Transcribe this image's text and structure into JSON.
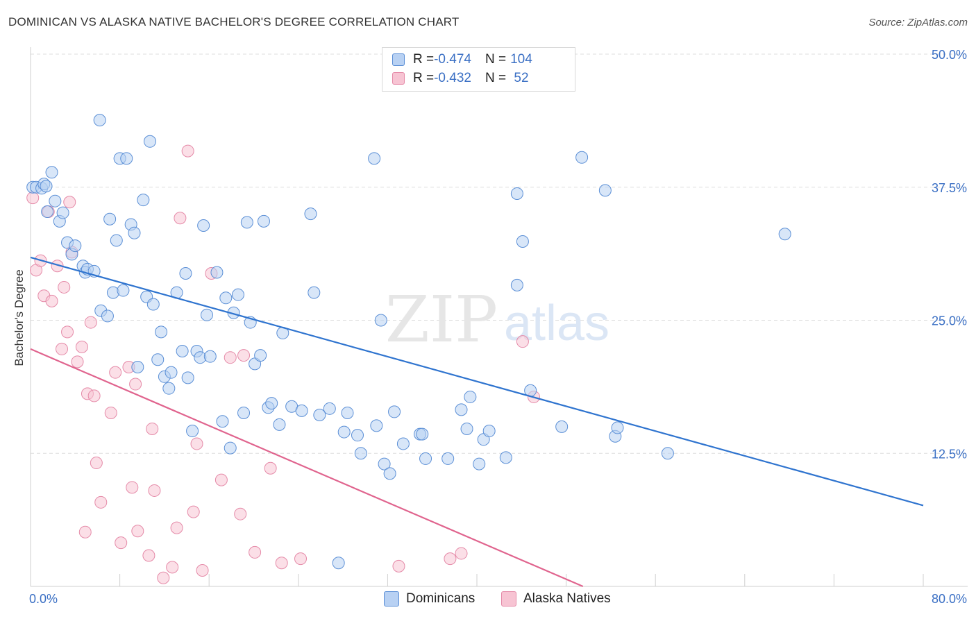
{
  "header": {
    "title": "DOMINICAN VS ALASKA NATIVE BACHELOR'S DEGREE CORRELATION CHART",
    "source": "Source: ZipAtlas.com"
  },
  "legend": {
    "rows": [
      {
        "r_label": "R = ",
        "r_value": "-0.474",
        "n_label": "N = ",
        "n_value": "104"
      },
      {
        "r_label": "R = ",
        "r_value": "-0.432",
        "n_label": "N = ",
        "n_value": " 52"
      }
    ]
  },
  "bottom_legend": [
    "Dominicans",
    "Alaska Natives"
  ],
  "watermark": {
    "zip": "ZIP",
    "atlas": "atlas"
  },
  "colors": {
    "blue_fill": "#b8d1f3",
    "blue_stroke": "#5b8fd6",
    "blue_line": "#2f74cf",
    "pink_fill": "#f7c4d3",
    "pink_stroke": "#e58aa8",
    "pink_line": "#e0648e",
    "tick_label": "#3a6fc4",
    "grid": "#dddddd"
  },
  "chart_data": {
    "type": "scatter",
    "title": "DOMINICAN VS ALASKA NATIVE BACHELOR'S DEGREE CORRELATION CHART",
    "xlabel": "",
    "ylabel": "Bachelor's Degree",
    "xlim": [
      0,
      80
    ],
    "ylim": [
      0,
      50
    ],
    "x_tick_labels": [
      "0.0%",
      "80.0%"
    ],
    "y_ticks": [
      12.5,
      25.0,
      37.5,
      50.0
    ],
    "y_tick_labels": [
      "12.5%",
      "25.0%",
      "37.5%",
      "50.0%"
    ],
    "grid": "horizontal dashed",
    "legend_position": "top-center",
    "series": [
      {
        "name": "Dominicans",
        "r": -0.474,
        "n": 104,
        "trend": {
          "x": [
            0,
            80
          ],
          "y": [
            30.9,
            7.6
          ]
        },
        "points": [
          [
            0.2,
            37.5
          ],
          [
            0.5,
            37.5
          ],
          [
            1,
            37.4
          ],
          [
            1.2,
            37.8
          ],
          [
            1.4,
            37.6
          ],
          [
            1.5,
            35.2
          ],
          [
            1.9,
            38.9
          ],
          [
            2.2,
            36.2
          ],
          [
            2.6,
            34.3
          ],
          [
            2.9,
            35.1
          ],
          [
            3.3,
            32.3
          ],
          [
            3.7,
            31.2
          ],
          [
            4,
            32.0
          ],
          [
            4.7,
            30.1
          ],
          [
            4.9,
            29.5
          ],
          [
            5.1,
            29.8
          ],
          [
            5.7,
            29.6
          ],
          [
            6.2,
            43.8
          ],
          [
            6.3,
            25.9
          ],
          [
            6.9,
            25.4
          ],
          [
            7.1,
            34.5
          ],
          [
            7.4,
            27.6
          ],
          [
            7.7,
            32.5
          ],
          [
            8,
            40.2
          ],
          [
            8.3,
            27.8
          ],
          [
            8.6,
            40.2
          ],
          [
            9,
            34.0
          ],
          [
            9.3,
            33.2
          ],
          [
            9.6,
            20.6
          ],
          [
            10.1,
            36.3
          ],
          [
            10.4,
            27.2
          ],
          [
            10.7,
            41.8
          ],
          [
            11,
            26.5
          ],
          [
            11.4,
            21.3
          ],
          [
            11.7,
            23.9
          ],
          [
            12,
            19.7
          ],
          [
            12.4,
            18.6
          ],
          [
            12.6,
            20.1
          ],
          [
            13.1,
            27.6
          ],
          [
            13.6,
            22.1
          ],
          [
            13.9,
            29.4
          ],
          [
            14.1,
            19.6
          ],
          [
            14.5,
            14.6
          ],
          [
            14.9,
            22.1
          ],
          [
            15.2,
            21.5
          ],
          [
            15.5,
            33.9
          ],
          [
            15.8,
            25.5
          ],
          [
            16.1,
            21.6
          ],
          [
            16.7,
            29.5
          ],
          [
            17.2,
            15.5
          ],
          [
            17.5,
            27.1
          ],
          [
            17.9,
            13.0
          ],
          [
            18.2,
            25.7
          ],
          [
            18.6,
            27.4
          ],
          [
            19.1,
            16.3
          ],
          [
            19.4,
            34.2
          ],
          [
            19.7,
            24.8
          ],
          [
            20.1,
            20.9
          ],
          [
            20.6,
            21.7
          ],
          [
            20.9,
            34.3
          ],
          [
            21.3,
            16.8
          ],
          [
            21.6,
            17.2
          ],
          [
            22.3,
            15.2
          ],
          [
            22.6,
            23.8
          ],
          [
            23.4,
            16.9
          ],
          [
            24.3,
            16.5
          ],
          [
            25.1,
            35.0
          ],
          [
            25.4,
            27.6
          ],
          [
            25.9,
            16.1
          ],
          [
            26.8,
            16.7
          ],
          [
            27.6,
            2.2
          ],
          [
            28.1,
            14.5
          ],
          [
            28.4,
            16.3
          ],
          [
            29.3,
            14.2
          ],
          [
            29.6,
            12.5
          ],
          [
            30.8,
            40.2
          ],
          [
            31,
            15.1
          ],
          [
            31.4,
            25.0
          ],
          [
            31.7,
            11.5
          ],
          [
            32.2,
            10.6
          ],
          [
            32.6,
            16.4
          ],
          [
            33.4,
            13.4
          ],
          [
            34.9,
            14.3
          ],
          [
            35.1,
            14.3
          ],
          [
            35.4,
            12.0
          ],
          [
            37.4,
            12.0
          ],
          [
            38.6,
            16.6
          ],
          [
            39.1,
            14.8
          ],
          [
            39.4,
            17.8
          ],
          [
            40.2,
            11.5
          ],
          [
            40.6,
            13.8
          ],
          [
            41.1,
            14.6
          ],
          [
            42.6,
            12.1
          ],
          [
            43.6,
            36.9
          ],
          [
            43.6,
            28.3
          ],
          [
            44.1,
            32.4
          ],
          [
            44.8,
            18.4
          ],
          [
            47.6,
            15.0
          ],
          [
            49.4,
            40.3
          ],
          [
            51.5,
            37.2
          ],
          [
            52.4,
            14.1
          ],
          [
            52.6,
            14.9
          ],
          [
            57.1,
            12.5
          ],
          [
            67.6,
            33.1
          ]
        ]
      },
      {
        "name": "Alaska Natives",
        "r": -0.432,
        "n": 52,
        "trend": {
          "x": [
            0,
            49.5
          ],
          "y": [
            22.3,
            0
          ]
        },
        "points": [
          [
            0.2,
            36.5
          ],
          [
            0.5,
            29.7
          ],
          [
            0.9,
            30.6
          ],
          [
            1.2,
            27.3
          ],
          [
            1.6,
            35.2
          ],
          [
            1.9,
            26.8
          ],
          [
            2.4,
            30.1
          ],
          [
            2.8,
            22.3
          ],
          [
            3,
            28.1
          ],
          [
            3.3,
            23.9
          ],
          [
            3.7,
            31.4
          ],
          [
            3.5,
            36.1
          ],
          [
            4.2,
            21.1
          ],
          [
            4.6,
            22.5
          ],
          [
            4.9,
            5.1
          ],
          [
            5.1,
            18.1
          ],
          [
            5.4,
            24.8
          ],
          [
            5.7,
            17.9
          ],
          [
            5.9,
            11.6
          ],
          [
            6.3,
            7.9
          ],
          [
            7.2,
            16.3
          ],
          [
            7.6,
            20.1
          ],
          [
            8.1,
            4.1
          ],
          [
            8.8,
            20.6
          ],
          [
            9.1,
            9.3
          ],
          [
            9.4,
            19.0
          ],
          [
            9.6,
            5.2
          ],
          [
            10.6,
            2.9
          ],
          [
            10.9,
            14.8
          ],
          [
            11.1,
            9.0
          ],
          [
            11.9,
            0.8
          ],
          [
            12.7,
            1.8
          ],
          [
            13.1,
            5.5
          ],
          [
            13.4,
            34.6
          ],
          [
            14.1,
            40.9
          ],
          [
            14.6,
            7.0
          ],
          [
            14.9,
            13.4
          ],
          [
            15.4,
            1.5
          ],
          [
            16.2,
            29.4
          ],
          [
            17.1,
            10.0
          ],
          [
            17.9,
            21.5
          ],
          [
            18.8,
            6.8
          ],
          [
            19.1,
            21.7
          ],
          [
            20.1,
            3.2
          ],
          [
            21.5,
            11.1
          ],
          [
            22.5,
            2.2
          ],
          [
            24.2,
            2.6
          ],
          [
            33,
            1.9
          ],
          [
            37.6,
            2.6
          ],
          [
            38.6,
            3.1
          ],
          [
            44.1,
            23.0
          ],
          [
            45.1,
            17.8
          ]
        ]
      }
    ]
  }
}
